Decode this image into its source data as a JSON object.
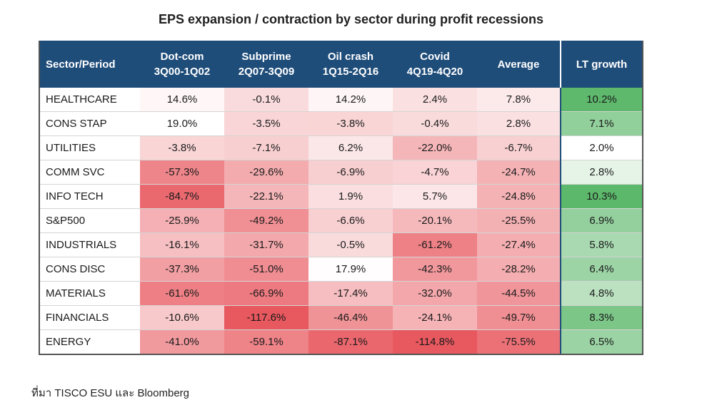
{
  "chart_data": {
    "type": "table",
    "title": "EPS expansion / contraction by sector during profit recessions",
    "columns": [
      {
        "name": "Sector/Period",
        "line1": "Sector/Period",
        "line2": ""
      },
      {
        "name": "Dot-com 3Q00-1Q02",
        "line1": "Dot-com",
        "line2": "3Q00-1Q02"
      },
      {
        "name": "Subprime 2Q07-3Q09",
        "line1": "Subprime",
        "line2": "2Q07-3Q09"
      },
      {
        "name": "Oil crash 1Q15-2Q16",
        "line1": "Oil crash",
        "line2": "1Q15-2Q16"
      },
      {
        "name": "Covid 4Q19-4Q20",
        "line1": "Covid",
        "line2": "4Q19-4Q20"
      },
      {
        "name": "Average",
        "line1": "Average",
        "line2": ""
      },
      {
        "name": "LT growth",
        "line1": "LT growth",
        "line2": ""
      }
    ],
    "rows": [
      {
        "sector": "HEALTHCARE",
        "values": [
          14.6,
          -0.1,
          14.2,
          2.4,
          7.8
        ],
        "lt_growth": 10.2
      },
      {
        "sector": "CONS STAP",
        "values": [
          19.0,
          -3.5,
          -3.8,
          -0.4,
          2.8
        ],
        "lt_growth": 7.1
      },
      {
        "sector": "UTILITIES",
        "values": [
          -3.8,
          -7.1,
          6.2,
          -22.0,
          -6.7
        ],
        "lt_growth": 2.0
      },
      {
        "sector": "COMM SVC",
        "values": [
          -57.3,
          -29.6,
          -6.9,
          -4.7,
          -24.7
        ],
        "lt_growth": 2.8
      },
      {
        "sector": "INFO TECH",
        "values": [
          -84.7,
          -22.1,
          1.9,
          5.7,
          -24.8
        ],
        "lt_growth": 10.3
      },
      {
        "sector": "S&P500",
        "values": [
          -25.9,
          -49.2,
          -6.6,
          -20.1,
          -25.5
        ],
        "lt_growth": 6.9
      },
      {
        "sector": "INDUSTRIALS",
        "values": [
          -16.1,
          -31.7,
          -0.5,
          -61.2,
          -27.4
        ],
        "lt_growth": 5.8
      },
      {
        "sector": "CONS DISC",
        "values": [
          -37.3,
          -51.0,
          17.9,
          -42.3,
          -28.2
        ],
        "lt_growth": 6.4
      },
      {
        "sector": "MATERIALS",
        "values": [
          -61.6,
          -66.9,
          -17.4,
          -32.0,
          -44.5
        ],
        "lt_growth": 4.8
      },
      {
        "sector": "FINANCIALS",
        "values": [
          -10.6,
          -117.6,
          -46.4,
          -24.1,
          -49.7
        ],
        "lt_growth": 8.3
      },
      {
        "sector": "ENERGY",
        "values": [
          -41.0,
          -59.1,
          -87.1,
          -114.8,
          -75.5
        ],
        "lt_growth": 6.5
      }
    ],
    "value_suffix": "%",
    "colors": {
      "header_bg": "#1f4d7a",
      "header_text": "#ffffff",
      "heat_low": "#e8585f",
      "heat_high": "#ffffff",
      "growth_low": "#ffffff",
      "growth_high": "#5cb86b"
    }
  },
  "source_note": "ที่มา TISCO ESU และ Bloomberg"
}
